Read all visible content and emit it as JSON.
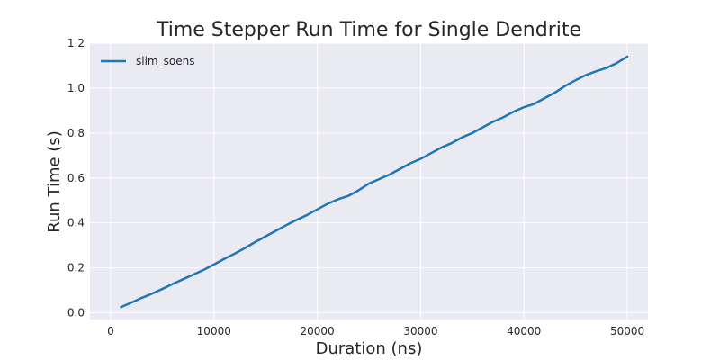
{
  "chart_data": {
    "type": "line",
    "title": "Time Stepper Run Time for Single Dendrite",
    "xlabel": "Duration (ns)",
    "ylabel": "Run Time (s)",
    "xlim": [
      -2000,
      52000
    ],
    "ylim": [
      -0.03,
      1.2
    ],
    "xticks": [
      0,
      10000,
      20000,
      30000,
      40000,
      50000
    ],
    "yticks": [
      0.0,
      0.2,
      0.4,
      0.6,
      0.8,
      1.0,
      1.2
    ],
    "xtick_labels": [
      "0",
      "10000",
      "20000",
      "30000",
      "40000",
      "50000"
    ],
    "ytick_labels": [
      "0.0",
      "0.2",
      "0.4",
      "0.6",
      "0.8",
      "1.0",
      "1.2"
    ],
    "grid": true,
    "legend_position": "top-left",
    "colors": {
      "background": "#eaeaf2",
      "grid": "#ffffff",
      "line": "#1f77b4"
    },
    "series": [
      {
        "name": "slim_soens",
        "x": [
          1000,
          2000,
          3000,
          4000,
          5000,
          6000,
          7000,
          8000,
          9000,
          10000,
          11000,
          12000,
          13000,
          14000,
          15000,
          16000,
          17000,
          18000,
          19000,
          20000,
          21000,
          22000,
          23000,
          24000,
          25000,
          26000,
          27000,
          28000,
          29000,
          30000,
          31000,
          32000,
          33000,
          34000,
          35000,
          36000,
          37000,
          38000,
          39000,
          40000,
          41000,
          42000,
          43000,
          44000,
          45000,
          46000,
          47000,
          48000,
          49000,
          50000
        ],
        "y": [
          0.025,
          0.045,
          0.066,
          0.085,
          0.106,
          0.128,
          0.149,
          0.17,
          0.191,
          0.215,
          0.24,
          0.263,
          0.288,
          0.315,
          0.34,
          0.365,
          0.39,
          0.413,
          0.435,
          0.46,
          0.485,
          0.505,
          0.52,
          0.545,
          0.575,
          0.595,
          0.615,
          0.64,
          0.665,
          0.685,
          0.71,
          0.735,
          0.755,
          0.78,
          0.8,
          0.825,
          0.85,
          0.87,
          0.895,
          0.915,
          0.93,
          0.955,
          0.98,
          1.01,
          1.035,
          1.058,
          1.075,
          1.09,
          1.112,
          1.14
        ]
      }
    ]
  }
}
